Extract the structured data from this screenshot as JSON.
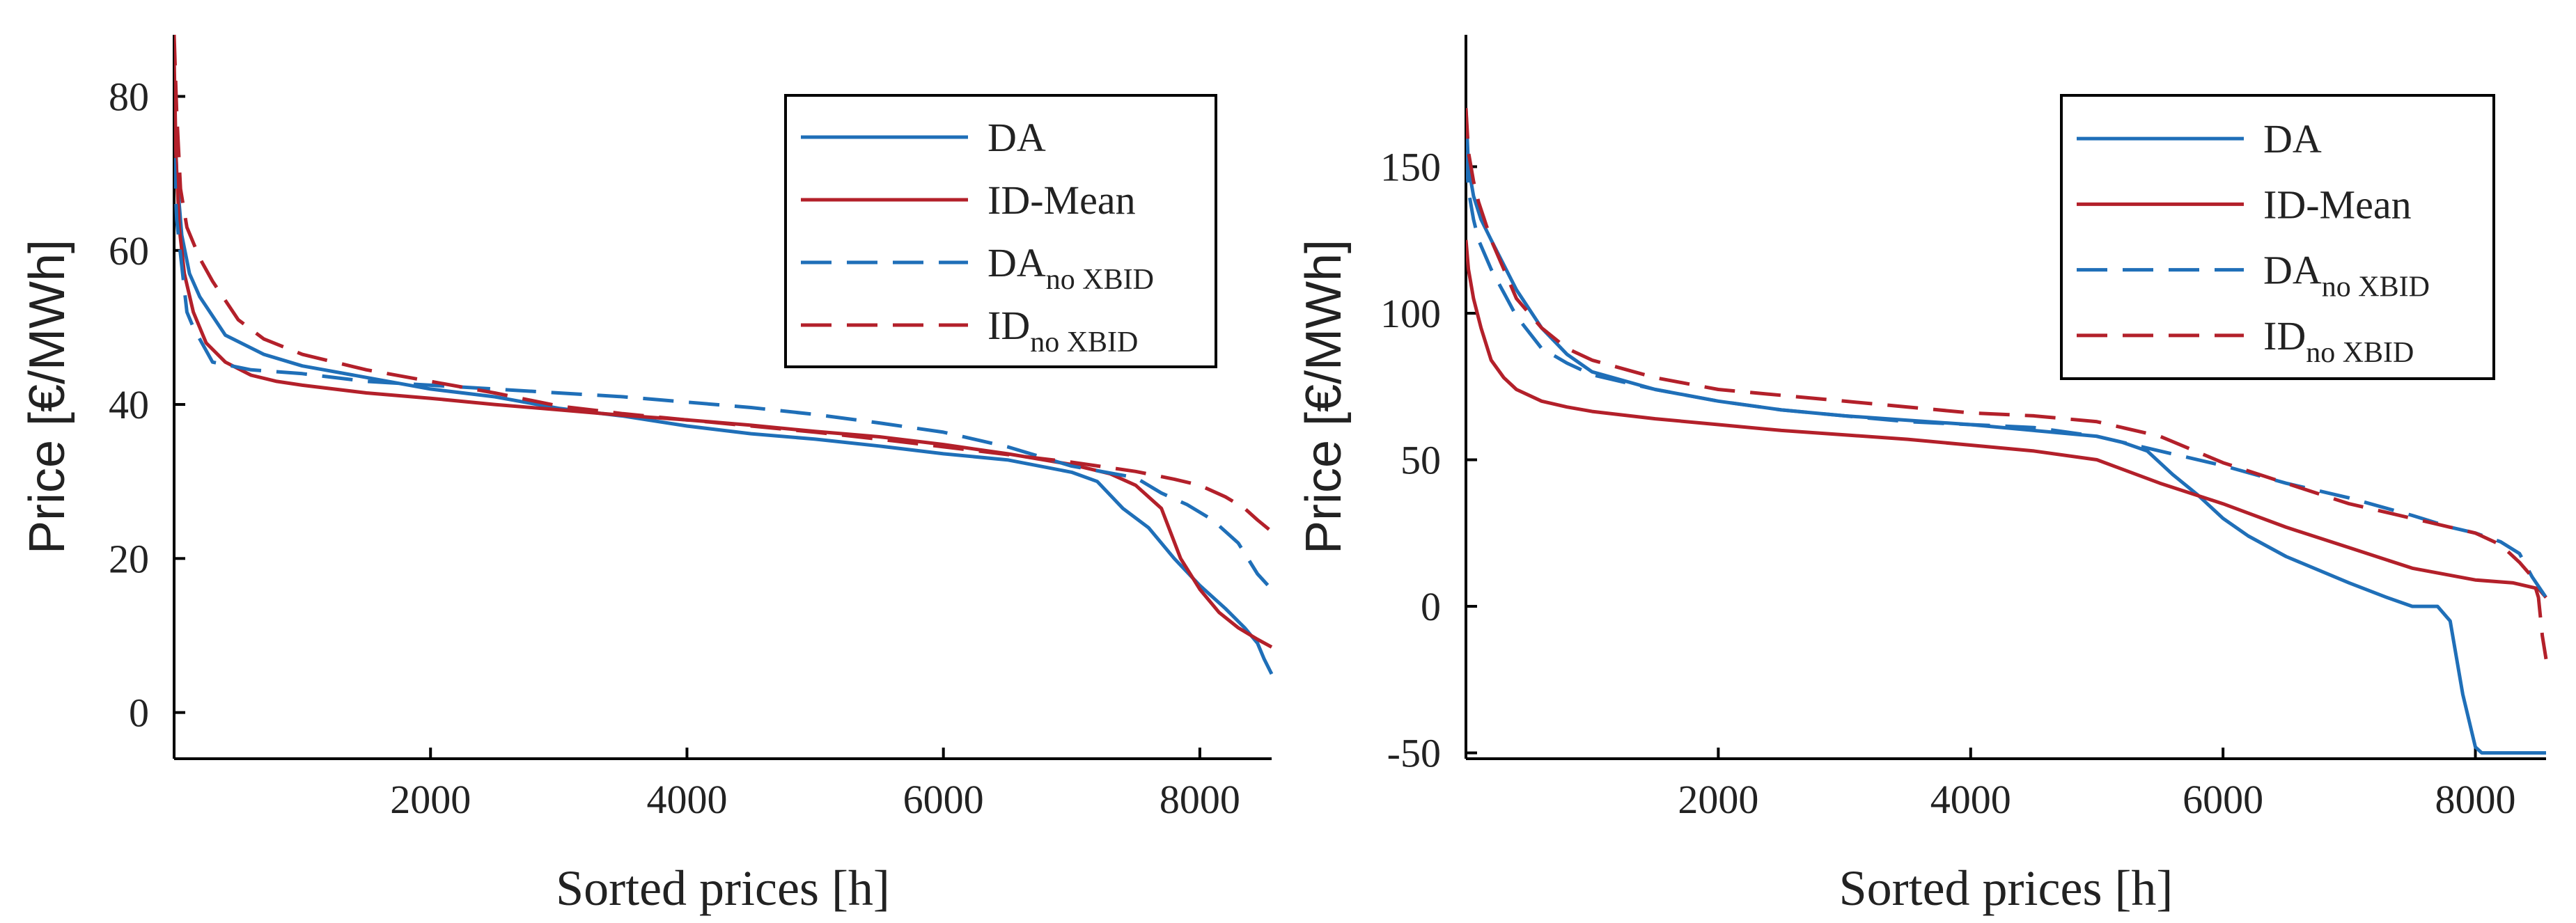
{
  "chart_data": [
    {
      "type": "line",
      "xlabel": "Sorted prices [h]",
      "ylabel": "Price [€/MWh]",
      "xlim": [
        0,
        8560
      ],
      "ylim": [
        -6,
        88
      ],
      "xticks": [
        2000,
        4000,
        6000,
        8000
      ],
      "yticks": [
        0,
        20,
        40,
        60,
        80
      ],
      "legend_position": "top-right",
      "series": [
        {
          "name": "DA",
          "sub": "",
          "color": "#1f6fb8",
          "dash": "solid",
          "x": [
            0,
            20,
            60,
            120,
            200,
            400,
            700,
            1000,
            1500,
            2000,
            2500,
            3000,
            3500,
            4000,
            4500,
            5000,
            5500,
            6000,
            6500,
            7000,
            7200,
            7400,
            7600,
            7800,
            8000,
            8200,
            8350,
            8450,
            8500,
            8560
          ],
          "y": [
            80,
            70,
            62,
            57,
            54,
            49,
            46.5,
            45,
            43.5,
            42,
            41,
            39.5,
            38.5,
            37.2,
            36.2,
            35.5,
            34.6,
            33.6,
            32.8,
            31.2,
            30,
            26.5,
            24,
            20,
            16.5,
            13.5,
            11,
            9,
            7,
            5
          ]
        },
        {
          "name": "ID-Mean",
          "sub": "",
          "color": "#b3202a",
          "dash": "solid",
          "x": [
            0,
            15,
            40,
            80,
            150,
            250,
            400,
            600,
            800,
            1000,
            1500,
            2000,
            2500,
            3000,
            3500,
            4000,
            4500,
            5000,
            5500,
            6000,
            6500,
            7000,
            7300,
            7500,
            7700,
            7850,
            8000,
            8150,
            8300,
            8450,
            8560
          ],
          "y": [
            85,
            72,
            63,
            57,
            52,
            48,
            45.5,
            43.8,
            43,
            42.5,
            41.5,
            40.8,
            40,
            39.3,
            38.6,
            38,
            37.3,
            36.5,
            35.8,
            34.8,
            33.6,
            32.2,
            31,
            29.5,
            26.5,
            20,
            16,
            13,
            11,
            9.5,
            8.5
          ]
        },
        {
          "name": "DA",
          "sub": "no XBID",
          "color": "#1f6fb8",
          "dash": "long",
          "x": [
            0,
            20,
            60,
            100,
            150,
            300,
            600,
            1000,
            1500,
            2000,
            2500,
            3000,
            3500,
            4000,
            4500,
            5000,
            5500,
            6000,
            6500,
            7000,
            7500,
            7700,
            7900,
            8100,
            8300,
            8450,
            8560
          ],
          "y": [
            72,
            64,
            58,
            52,
            50,
            45.5,
            44.5,
            44,
            43,
            42.5,
            42,
            41.5,
            41,
            40.3,
            39.6,
            38.7,
            37.6,
            36.4,
            34.5,
            32,
            30.5,
            28.5,
            27,
            25,
            22,
            18,
            16
          ]
        },
        {
          "name": "ID",
          "sub": "no XBID",
          "color": "#b3202a",
          "dash": "long",
          "x": [
            0,
            20,
            50,
            100,
            200,
            300,
            500,
            700,
            1000,
            1500,
            2000,
            2500,
            3000,
            3500,
            4000,
            4500,
            5000,
            5500,
            6000,
            6500,
            7000,
            7500,
            7800,
            8000,
            8200,
            8350,
            8450,
            8560
          ],
          "y": [
            88,
            78,
            68,
            63,
            59,
            56,
            51,
            48.5,
            46.5,
            44.5,
            43,
            41.5,
            39.8,
            38.8,
            38,
            37.2,
            36.4,
            35.5,
            34.5,
            33.5,
            32.5,
            31.3,
            30.3,
            29.5,
            28,
            26.5,
            25,
            23.5
          ]
        }
      ]
    },
    {
      "type": "line",
      "xlabel": "Sorted prices [h]",
      "ylabel": "Price [€/MWh]",
      "xlim": [
        0,
        8560
      ],
      "ylim": [
        -52,
        195
      ],
      "xticks": [
        2000,
        4000,
        6000,
        8000
      ],
      "yticks": [
        -50,
        0,
        50,
        100,
        150
      ],
      "legend_position": "top-right",
      "series": [
        {
          "name": "DA",
          "sub": "",
          "color": "#1f6fb8",
          "dash": "solid",
          "x": [
            0,
            20,
            60,
            120,
            200,
            400,
            600,
            800,
            1000,
            1500,
            2000,
            2500,
            3000,
            3500,
            4000,
            4500,
            5000,
            5200,
            5400,
            5600,
            5800,
            6000,
            6200,
            6500,
            7000,
            7300,
            7500,
            7700,
            7800,
            7900,
            8000,
            8050,
            8200,
            8400,
            8560
          ],
          "y": [
            170,
            150,
            140,
            132,
            125,
            108,
            95,
            86,
            80,
            74,
            70,
            67,
            65,
            63.5,
            62,
            60,
            58,
            56,
            53,
            45,
            38,
            30,
            24,
            17,
            8,
            3,
            0,
            0,
            -5,
            -30,
            -48,
            -50,
            -50,
            -50,
            -50
          ]
        },
        {
          "name": "ID-Mean",
          "sub": "",
          "color": "#b3202a",
          "dash": "solid",
          "x": [
            0,
            20,
            60,
            120,
            200,
            300,
            400,
            600,
            800,
            1000,
            1500,
            2000,
            2500,
            3000,
            3500,
            4000,
            4500,
            5000,
            5500,
            6000,
            6500,
            7000,
            7500,
            8000,
            8300,
            8500,
            8560
          ],
          "y": [
            125,
            115,
            105,
            95,
            84,
            78,
            74,
            70,
            68,
            66.5,
            64,
            62,
            60,
            58.5,
            57,
            55,
            53,
            50,
            42,
            35,
            27,
            20,
            13,
            9,
            8,
            6,
            3
          ]
        },
        {
          "name": "DA",
          "sub": "no XBID",
          "color": "#1f6fb8",
          "dash": "long",
          "x": [
            0,
            20,
            60,
            100,
            200,
            300,
            400,
            600,
            800,
            1000,
            1500,
            2000,
            2500,
            3000,
            3500,
            4000,
            4500,
            5000,
            5500,
            6000,
            6500,
            7000,
            7500,
            7800,
            8000,
            8200,
            8350,
            8450,
            8560
          ],
          "y": [
            155,
            142,
            132,
            125,
            115,
            107,
            99,
            88,
            83,
            79,
            74,
            70,
            67,
            65,
            63,
            62,
            61,
            58,
            53,
            48,
            42,
            37,
            31,
            27,
            25,
            22,
            18,
            10,
            3
          ]
        },
        {
          "name": "ID",
          "sub": "no XBID",
          "color": "#b3202a",
          "dash": "long",
          "x": [
            0,
            20,
            60,
            100,
            200,
            300,
            400,
            600,
            800,
            1000,
            1500,
            2000,
            2500,
            3000,
            3500,
            4000,
            4500,
            5000,
            5500,
            6000,
            6500,
            7000,
            7500,
            7800,
            8000,
            8200,
            8350,
            8450,
            8500,
            8530,
            8560
          ],
          "y": [
            170,
            155,
            145,
            138,
            125,
            115,
            105,
            95,
            88,
            84,
            78,
            74,
            72,
            70,
            68,
            66,
            65,
            63,
            58,
            49,
            42,
            35,
            30,
            27,
            25,
            21,
            15,
            10,
            3,
            -10,
            -18
          ]
        }
      ]
    }
  ]
}
